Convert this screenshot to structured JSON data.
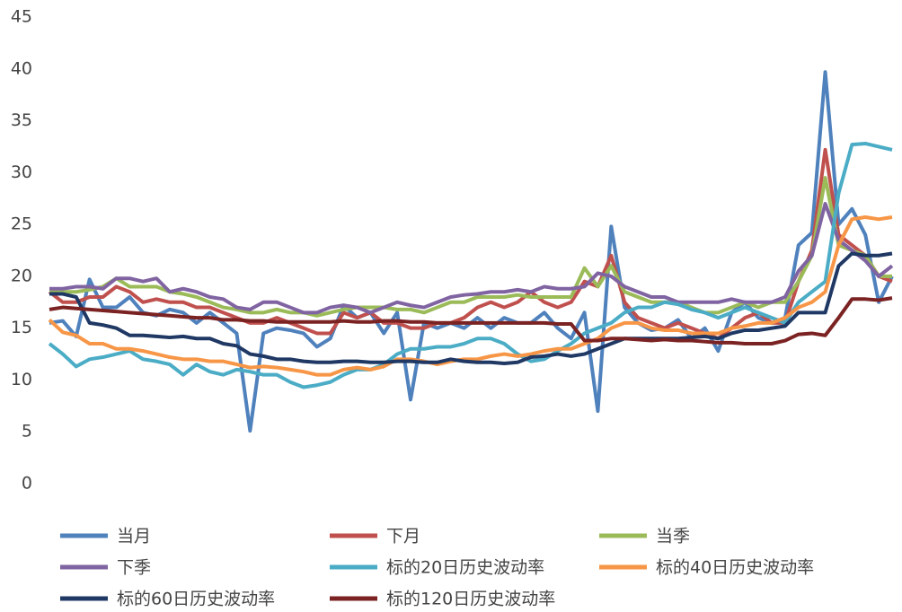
{
  "chart_data": {
    "type": "line",
    "grid": false,
    "categories": [
      null,
      null,
      null,
      null,
      null,
      null,
      null,
      null,
      null,
      null,
      null,
      null,
      null,
      null,
      null,
      null,
      null,
      null,
      null,
      null,
      null,
      null,
      null,
      null,
      null,
      null,
      null,
      null,
      null,
      null,
      null,
      null,
      null,
      null,
      null,
      null,
      null,
      null,
      null,
      null,
      null,
      null,
      null,
      null,
      null,
      null,
      null,
      null,
      null,
      null,
      null,
      null,
      null,
      null,
      null,
      null,
      null,
      null,
      null,
      null,
      null,
      null,
      null,
      null
    ],
    "ylim": [
      0,
      45
    ],
    "yticks": [
      0,
      5,
      10,
      15,
      20,
      25,
      30,
      35,
      40,
      45
    ],
    "series": [
      {
        "name": "当月",
        "color": "#4f81bd",
        "values": [
          15.5,
          15.7,
          14.2,
          19.7,
          17,
          17,
          18,
          16.5,
          16.2,
          16.8,
          16.5,
          15.5,
          16.5,
          15.5,
          14.5,
          5.1,
          14.5,
          15,
          14.8,
          14.5,
          13.2,
          14,
          17.2,
          16,
          16.5,
          14.5,
          16.5,
          8.1,
          15.5,
          15,
          15.5,
          15,
          16,
          15,
          16,
          15.5,
          15.5,
          16.5,
          15,
          14,
          16.5,
          7,
          24.8,
          17,
          15.5,
          14.8,
          15,
          15.8,
          14,
          15,
          12.8,
          16.5,
          17.5,
          16,
          15.5,
          16,
          23,
          24.2,
          39.7,
          25,
          26.5,
          24,
          17.5,
          20
        ]
      },
      {
        "name": "下月",
        "color": "#c0504d",
        "values": [
          18.5,
          17.5,
          17.5,
          18,
          18,
          19,
          18.5,
          17.5,
          17.8,
          17.5,
          17.5,
          17,
          17,
          16.5,
          16,
          15.5,
          15.5,
          16,
          15.5,
          15,
          14.5,
          14.5,
          16.5,
          16,
          16.5,
          15.5,
          15.5,
          15,
          15,
          15.5,
          15.5,
          16,
          17,
          17.5,
          17,
          17.5,
          18.5,
          17.5,
          17,
          17.5,
          19.5,
          19,
          22,
          17.5,
          16,
          15.5,
          15,
          15.5,
          15,
          14.5,
          14,
          15,
          16,
          16.5,
          15.5,
          15.5,
          19.5,
          22.5,
          32.2,
          24,
          23,
          22,
          20,
          19.5
        ]
      },
      {
        "name": "当季",
        "color": "#9bbb59",
        "values": [
          18.5,
          18.5,
          18.5,
          18.7,
          19,
          19.8,
          19,
          19,
          19,
          18.5,
          18.3,
          18,
          17.5,
          17,
          16.8,
          16.5,
          16.5,
          16.8,
          16.5,
          16.5,
          16.2,
          16.5,
          16.8,
          17,
          17,
          17,
          16.8,
          16.8,
          16.5,
          17,
          17.5,
          17.5,
          18,
          18,
          18,
          18.2,
          18,
          18,
          18,
          18,
          20.8,
          19,
          21,
          18.5,
          18,
          17.5,
          17.5,
          17.5,
          17,
          16.5,
          16.5,
          17,
          17.5,
          17,
          17.5,
          17.5,
          19.5,
          22,
          29.5,
          23,
          22.5,
          22,
          20,
          20
        ]
      },
      {
        "name": "下季",
        "color": "#8064a2",
        "values": [
          18.8,
          18.8,
          19,
          19,
          18.8,
          19.8,
          19.8,
          19.5,
          19.8,
          18.5,
          18.8,
          18.5,
          18,
          17.8,
          17,
          16.8,
          17.5,
          17.5,
          17,
          16.5,
          16.5,
          17,
          17.2,
          17,
          16.5,
          17,
          17.5,
          17.2,
          17,
          17.5,
          18,
          18.2,
          18.3,
          18.5,
          18.5,
          18.7,
          18.5,
          19,
          18.8,
          18.8,
          19,
          20.3,
          20,
          19,
          18.5,
          18,
          18,
          17.5,
          17.5,
          17.5,
          17.5,
          17.8,
          17.5,
          17.5,
          17.5,
          18,
          20.5,
          22,
          27,
          23.5,
          22.5,
          21.5,
          20,
          21
        ]
      },
      {
        "name": "标的20日历史波动率",
        "color": "#4bacc6",
        "values": [
          13.5,
          12.5,
          11.3,
          12,
          12.2,
          12.5,
          12.8,
          12,
          11.8,
          11.5,
          10.5,
          11.5,
          10.8,
          10.5,
          11,
          10.8,
          10.5,
          10.5,
          9.8,
          9.3,
          9.5,
          9.8,
          10.5,
          11,
          11,
          11.5,
          12.5,
          13,
          13,
          13.2,
          13.2,
          13.5,
          14,
          14,
          13.5,
          12.5,
          11.8,
          12,
          12.8,
          13.5,
          14.5,
          15,
          15.5,
          16.5,
          17,
          17,
          17.5,
          17.3,
          16.8,
          16.5,
          16,
          16.5,
          17,
          16.5,
          16,
          15.5,
          17.5,
          18.5,
          19.5,
          28,
          32.7,
          32.8,
          32.5,
          32.2
        ]
      },
      {
        "name": "标的40日历史波动率",
        "color": "#f79646",
        "values": [
          15.8,
          14.6,
          14.3,
          13.5,
          13.5,
          13,
          13,
          12.8,
          12.5,
          12.2,
          12,
          12,
          11.8,
          11.8,
          11.5,
          11.2,
          11.3,
          11.2,
          11,
          10.8,
          10.5,
          10.5,
          11,
          11.2,
          11,
          11.3,
          12,
          12,
          11.8,
          11.5,
          11.8,
          12,
          12,
          12.3,
          12.5,
          12.3,
          12.5,
          12.8,
          13,
          13,
          13.5,
          14,
          15,
          15.5,
          15.5,
          15,
          14.8,
          14.8,
          14.5,
          14.5,
          14.5,
          15,
          15.2,
          15.5,
          15.5,
          16,
          17,
          17.5,
          18.5,
          23,
          25.5,
          25.7,
          25.5,
          25.7
        ]
      },
      {
        "name": "标的60日历史波动率",
        "color": "#1f3864",
        "values": [
          18.3,
          18.3,
          18,
          15.5,
          15.3,
          15,
          14.3,
          14.3,
          14.2,
          14.1,
          14.2,
          14,
          14,
          13.5,
          13.3,
          12.5,
          12.3,
          12,
          12,
          11.8,
          11.7,
          11.7,
          11.8,
          11.8,
          11.7,
          11.7,
          11.8,
          11.8,
          11.7,
          11.7,
          12,
          11.8,
          11.7,
          11.7,
          11.6,
          11.7,
          12.2,
          12.3,
          12.5,
          12.3,
          12.5,
          13,
          13.5,
          14,
          14,
          14,
          14,
          14,
          14.1,
          14.2,
          14,
          14.5,
          14.8,
          14.8,
          15,
          15.2,
          16.5,
          16.5,
          16.5,
          21,
          22.2,
          22,
          22,
          22.2
        ]
      },
      {
        "name": "标的120日历史波动率",
        "color": "#7b2222",
        "values": [
          16.8,
          17,
          16.9,
          16.8,
          16.7,
          16.6,
          16.5,
          16.4,
          16.3,
          16.2,
          16.1,
          16,
          16,
          15.8,
          15.8,
          15.7,
          15.7,
          15.6,
          15.6,
          15.6,
          15.6,
          15.6,
          15.7,
          15.6,
          15.6,
          15.7,
          15.7,
          15.6,
          15.6,
          15.5,
          15.5,
          15.5,
          15.5,
          15.5,
          15.5,
          15.5,
          15.5,
          15.5,
          15.4,
          15.4,
          13.8,
          13.8,
          14,
          14,
          13.9,
          13.8,
          13.9,
          13.8,
          13.8,
          13.7,
          13.6,
          13.6,
          13.5,
          13.5,
          13.5,
          13.8,
          14.4,
          14.5,
          14.3,
          16,
          17.8,
          17.8,
          17.7,
          17.9
        ]
      }
    ]
  }
}
